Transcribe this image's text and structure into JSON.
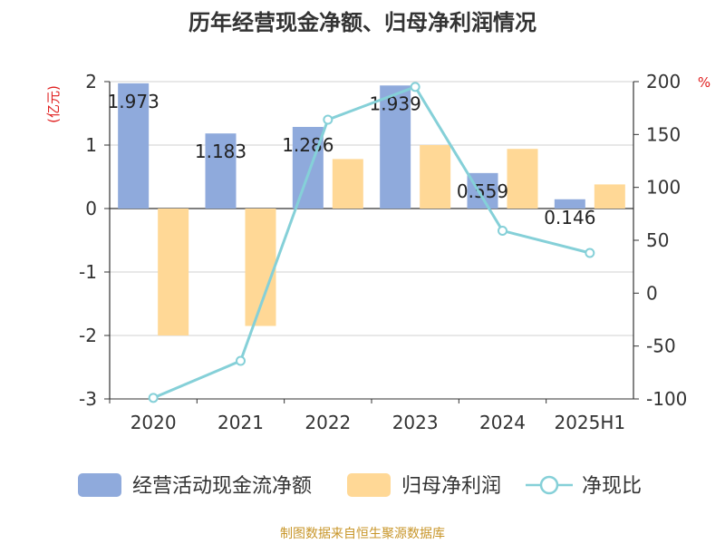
{
  "chart_data": {
    "type": "bar",
    "title": "历年经营现金净额、归母净利润情况",
    "categories": [
      "2020",
      "2021",
      "2022",
      "2023",
      "2024",
      "2025H1"
    ],
    "y_left": {
      "label": "(亿元)",
      "ylim": [
        -3,
        2
      ],
      "ticks": [
        2,
        1,
        0,
        -1,
        -2,
        -3
      ]
    },
    "y_right": {
      "label": "%",
      "ylim": [
        -100,
        200
      ],
      "ticks": [
        200,
        150,
        100,
        50,
        0,
        -50,
        -100
      ]
    },
    "series": [
      {
        "name": "经营活动现金流净额",
        "type": "bar",
        "axis": "left",
        "color": "#8faadc",
        "values": [
          1.973,
          1.183,
          1.286,
          1.939,
          0.559,
          0.146
        ],
        "labels": [
          "1.973",
          "1.183",
          "1.286",
          "1.939",
          "0.559",
          "0.146"
        ]
      },
      {
        "name": "归母净利润",
        "type": "bar",
        "axis": "left",
        "color": "#ffd896",
        "values": [
          -2.0,
          -1.85,
          0.78,
          1.0,
          0.94,
          0.38
        ]
      },
      {
        "name": "净现比",
        "type": "line",
        "axis": "right",
        "color": "#85d0d8",
        "values": [
          -99,
          -64,
          164,
          195,
          59,
          38
        ]
      }
    ],
    "grid": true,
    "legend_position": "bottom",
    "source_note": "制图数据来自恒生聚源数据库"
  }
}
